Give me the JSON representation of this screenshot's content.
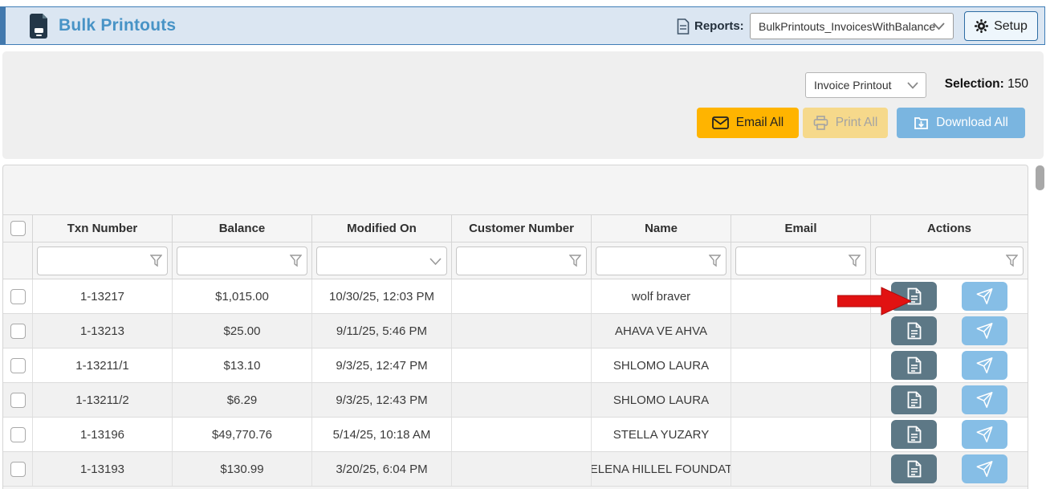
{
  "header": {
    "title": "Bulk Printouts",
    "reports_label": "Reports:",
    "reports_value": "BulkPrintouts_InvoicesWithBalance",
    "setup_label": "Setup",
    "icons": [
      "bulk-printouts-document-icon",
      "report-document-icon",
      "gear-icon",
      "chevron-down-icon"
    ]
  },
  "toolbar": {
    "printout_type_value": "Invoice Printout",
    "selection_label": "Selection:",
    "selection_count": "150",
    "email_all_label": "Email All",
    "print_all_label": "Print All",
    "download_all_label": "Download All",
    "print_all_disabled": true,
    "icons": [
      "envelope-icon",
      "printer-icon",
      "download-icon"
    ]
  },
  "table": {
    "columns": [
      "Txn Number",
      "Balance",
      "Modified On",
      "Customer Number",
      "Name",
      "Email",
      "Actions"
    ],
    "filter_controls": [
      "funnel",
      "funnel",
      "dropdown",
      "funnel",
      "funnel",
      "funnel",
      "funnel"
    ],
    "rows": [
      {
        "txn": "1-13217",
        "balance": "$1,015.00",
        "modified": "10/30/25, 12:03 PM",
        "customer": "",
        "name": "wolf braver",
        "email": ""
      },
      {
        "txn": "1-13213",
        "balance": "$25.00",
        "modified": "9/11/25, 5:46 PM",
        "customer": "",
        "name": "AHAVA VE AHVA",
        "email": ""
      },
      {
        "txn": "1-13211/1",
        "balance": "$13.10",
        "modified": "9/3/25, 12:47 PM",
        "customer": "",
        "name": "SHLOMO LAURA",
        "email": ""
      },
      {
        "txn": "1-13211/2",
        "balance": "$6.29",
        "modified": "9/3/25, 12:43 PM",
        "customer": "",
        "name": "SHLOMO LAURA",
        "email": ""
      },
      {
        "txn": "1-13196",
        "balance": "$49,770.76",
        "modified": "5/14/25, 10:18 AM",
        "customer": "",
        "name": "STELLA YUZARY",
        "email": ""
      },
      {
        "txn": "1-13193",
        "balance": "$130.99",
        "modified": "3/20/25, 6:04 PM",
        "customer": "",
        "name": "ELENA HILLEL FOUNDAT",
        "email": ""
      }
    ],
    "row_action_icons": [
      "document-icon",
      "paper-plane-icon"
    ]
  },
  "overlay": {
    "red_arrow_points_to": "first-row-document-button"
  },
  "colors": {
    "header_bg": "#dbe6f2",
    "header_accent": "#4379ad",
    "header_border": "#3f7db6",
    "title_text": "#4793c6",
    "email_all": "#ffb400",
    "print_all_disabled": "#f6d98b",
    "download_all": "#7ab5e0",
    "action_document_btn": "#5d7886",
    "action_send_btn": "#86bee6",
    "row_stripe": "#f1f1f1",
    "arrow_red": "#e11212"
  }
}
